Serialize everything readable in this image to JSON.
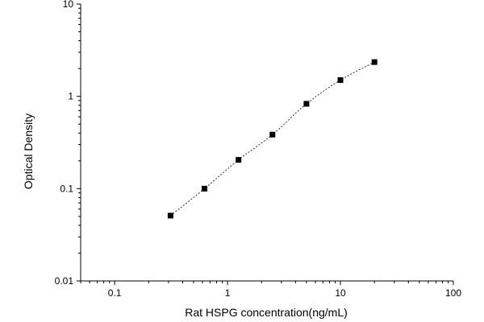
{
  "chart_data": {
    "type": "scatter",
    "title": "",
    "xlabel": "Rat HSPG concentration(ng/mL)",
    "ylabel": "Optical Density",
    "xscale": "log",
    "yscale": "log",
    "xlim": [
      0.05,
      100
    ],
    "ylim": [
      0.01,
      10
    ],
    "x_ticks": [
      0.1,
      1,
      10,
      100
    ],
    "x_tick_labels": [
      "0.1",
      "1",
      "10",
      "100"
    ],
    "y_ticks": [
      0.01,
      0.1,
      1,
      10
    ],
    "y_tick_labels": [
      "0.01",
      "0.1",
      "1",
      "10"
    ],
    "grid": false,
    "legend": "none",
    "series": [
      {
        "x": [
          0.3125,
          0.625,
          1.25,
          2.5,
          5,
          10,
          20
        ],
        "y": [
          0.051,
          0.1,
          0.205,
          0.385,
          0.83,
          1.5,
          2.35
        ],
        "marker": "square",
        "line": "dashed",
        "color": "#000000"
      }
    ]
  }
}
